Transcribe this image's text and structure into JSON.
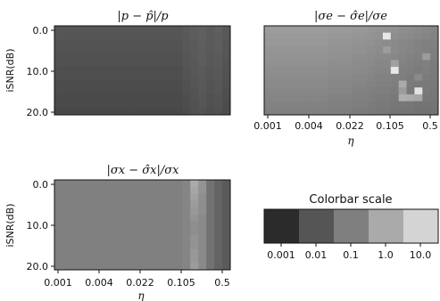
{
  "chart_data": [
    {
      "type": "heatmap",
      "title": "|p − p̂|/p",
      "ylabel": "iSNR(dB)",
      "xlabel": "",
      "y_ticks": [
        "0.0",
        "10.0",
        "20.0"
      ],
      "x_ticks": [],
      "grid": false,
      "rows": 13,
      "cols": 22,
      "cell_levels": [
        [
          -2.1,
          -2.1,
          -2.1,
          -2.1,
          -2.1,
          -2.1,
          -2.1,
          -2.1,
          -2.1,
          -2.1,
          -2.1,
          -2.1,
          -2.1,
          -2.1,
          -2.1,
          -2.1,
          -2.0,
          -1.95,
          -1.9,
          -2.0,
          -1.9,
          -2.05
        ],
        [
          -2.1,
          -2.1,
          -2.1,
          -2.1,
          -2.1,
          -2.1,
          -2.1,
          -2.1,
          -2.1,
          -2.1,
          -2.1,
          -2.1,
          -2.1,
          -2.1,
          -2.1,
          -2.1,
          -2.05,
          -1.95,
          -1.9,
          -2.0,
          -1.95,
          -2.05
        ],
        [
          -2.15,
          -2.15,
          -2.15,
          -2.15,
          -2.15,
          -2.15,
          -2.15,
          -2.15,
          -2.15,
          -2.15,
          -2.15,
          -2.15,
          -2.15,
          -2.15,
          -2.15,
          -2.15,
          -2.05,
          -2.0,
          -1.9,
          -2.0,
          -1.95,
          -2.1
        ],
        [
          -2.15,
          -2.15,
          -2.15,
          -2.15,
          -2.15,
          -2.15,
          -2.15,
          -2.15,
          -2.15,
          -2.15,
          -2.15,
          -2.15,
          -2.15,
          -2.15,
          -2.15,
          -2.15,
          -2.05,
          -2.0,
          -1.95,
          -2.0,
          -1.95,
          -2.1
        ],
        [
          -2.2,
          -2.2,
          -2.2,
          -2.2,
          -2.2,
          -2.2,
          -2.2,
          -2.2,
          -2.2,
          -2.2,
          -2.2,
          -2.2,
          -2.2,
          -2.2,
          -2.2,
          -2.2,
          -2.1,
          -2.0,
          -1.95,
          -2.05,
          -2.0,
          -2.1
        ],
        [
          -2.2,
          -2.2,
          -2.2,
          -2.2,
          -2.2,
          -2.2,
          -2.2,
          -2.2,
          -2.2,
          -2.2,
          -2.2,
          -2.2,
          -2.2,
          -2.2,
          -2.2,
          -2.2,
          -2.1,
          -2.05,
          -1.95,
          -2.05,
          -2.0,
          -2.15
        ],
        [
          -2.25,
          -2.25,
          -2.25,
          -2.25,
          -2.25,
          -2.25,
          -2.25,
          -2.25,
          -2.25,
          -2.25,
          -2.25,
          -2.25,
          -2.25,
          -2.25,
          -2.25,
          -2.25,
          -2.15,
          -2.05,
          -2.0,
          -2.1,
          -2.05,
          -2.15
        ],
        [
          -2.25,
          -2.25,
          -2.25,
          -2.25,
          -2.25,
          -2.25,
          -2.25,
          -2.25,
          -2.25,
          -2.25,
          -2.25,
          -2.25,
          -2.25,
          -2.25,
          -2.25,
          -2.25,
          -2.15,
          -2.1,
          -2.0,
          -2.1,
          -2.05,
          -2.2
        ],
        [
          -2.3,
          -2.3,
          -2.3,
          -2.3,
          -2.3,
          -2.3,
          -2.3,
          -2.3,
          -2.3,
          -2.3,
          -2.3,
          -2.3,
          -2.3,
          -2.3,
          -2.3,
          -2.3,
          -2.2,
          -2.1,
          -2.05,
          -2.15,
          -2.1,
          -2.2
        ],
        [
          -2.3,
          -2.3,
          -2.3,
          -2.3,
          -2.3,
          -2.3,
          -2.3,
          -2.3,
          -2.3,
          -2.3,
          -2.3,
          -2.3,
          -2.3,
          -2.3,
          -2.3,
          -2.3,
          -2.2,
          -2.15,
          -2.05,
          -2.15,
          -2.1,
          -2.25
        ],
        [
          -2.35,
          -2.35,
          -2.35,
          -2.35,
          -2.35,
          -2.35,
          -2.35,
          -2.35,
          -2.35,
          -2.35,
          -2.35,
          -2.35,
          -2.35,
          -2.35,
          -2.35,
          -2.35,
          -2.25,
          -2.15,
          -2.1,
          -2.2,
          -2.15,
          -2.25
        ],
        [
          -2.35,
          -2.35,
          -2.35,
          -2.35,
          -2.35,
          -2.35,
          -2.35,
          -2.35,
          -2.35,
          -2.35,
          -2.35,
          -2.35,
          -2.35,
          -2.35,
          -2.35,
          -2.35,
          -2.25,
          -2.2,
          -2.1,
          -2.2,
          -2.15,
          -2.3
        ],
        [
          -2.4,
          -2.4,
          -2.4,
          -2.4,
          -2.4,
          -2.4,
          -2.4,
          -2.4,
          -2.4,
          -2.4,
          -2.4,
          -2.4,
          -2.4,
          -2.4,
          -2.4,
          -2.4,
          -2.3,
          -2.2,
          -2.15,
          -2.25,
          -2.2,
          -2.3
        ]
      ]
    },
    {
      "type": "heatmap",
      "title": "|σe − σ̂e|/σe",
      "ylabel": "",
      "xlabel": "η",
      "y_ticks": [],
      "x_ticks": [
        "0.001",
        "0.004",
        "0.022",
        "0.105",
        "0.5"
      ],
      "grid": false,
      "rows": 13,
      "cols": 22,
      "cell_levels": [
        [
          -0.6,
          -0.6,
          -0.6,
          -0.6,
          -0.6,
          -0.6,
          -0.6,
          -0.6,
          -0.65,
          -0.65,
          -0.65,
          -0.7,
          -0.7,
          -0.75,
          -0.8,
          -0.8,
          -0.85,
          -0.9,
          -0.95,
          -1.0,
          -1.05,
          -1.1
        ],
        [
          -0.65,
          -0.65,
          -0.65,
          -0.65,
          -0.65,
          -0.65,
          -0.65,
          -0.65,
          -0.7,
          -0.7,
          -0.7,
          -0.75,
          -0.75,
          -0.8,
          -0.85,
          2.2,
          -0.9,
          -0.95,
          -1.0,
          -1.05,
          -1.1,
          -1.15
        ],
        [
          -0.7,
          -0.7,
          -0.7,
          -0.7,
          -0.7,
          -0.7,
          -0.7,
          -0.7,
          -0.75,
          -0.75,
          -0.75,
          -0.8,
          -0.8,
          -0.85,
          -0.9,
          -0.95,
          -1.0,
          -1.05,
          -1.1,
          -1.15,
          -1.2,
          -1.2
        ],
        [
          -0.75,
          -0.75,
          -0.75,
          -0.75,
          -0.75,
          -0.75,
          -0.75,
          -0.75,
          -0.8,
          -0.8,
          -0.8,
          -0.85,
          -0.85,
          -0.9,
          -0.95,
          -0.6,
          -1.0,
          -1.05,
          -1.1,
          -1.15,
          -1.2,
          -1.25
        ],
        [
          -0.8,
          -0.8,
          -0.8,
          -0.8,
          -0.8,
          -0.8,
          -0.8,
          -0.8,
          -0.85,
          -0.85,
          -0.85,
          -0.9,
          -0.9,
          -0.95,
          -1.0,
          -1.0,
          -1.05,
          -1.1,
          -1.15,
          -1.2,
          -0.6,
          -1.25
        ],
        [
          -0.85,
          -0.85,
          -0.85,
          -0.85,
          -0.85,
          -0.85,
          -0.85,
          -0.85,
          -0.9,
          -0.9,
          -0.9,
          -0.95,
          -0.95,
          -1.0,
          -1.05,
          -1.05,
          -0.5,
          -1.15,
          -1.2,
          -1.25,
          -1.2,
          -1.3
        ],
        [
          -0.9,
          -0.9,
          -0.9,
          -0.9,
          -0.9,
          -0.9,
          -0.9,
          -0.9,
          -0.95,
          -0.95,
          -0.95,
          -1.0,
          -1.0,
          -1.05,
          -1.1,
          -1.1,
          1.3,
          -1.2,
          -1.25,
          -1.3,
          -1.25,
          -1.3
        ],
        [
          -0.95,
          -0.95,
          -0.95,
          -0.95,
          -0.95,
          -0.95,
          -0.95,
          -0.95,
          -1.0,
          -1.0,
          -1.0,
          -1.05,
          -1.05,
          -1.1,
          -1.15,
          -1.15,
          -1.2,
          -1.25,
          -1.3,
          -1.0,
          -1.3,
          -1.35
        ],
        [
          -1.0,
          -1.0,
          -1.0,
          -1.0,
          -1.0,
          -1.0,
          -1.0,
          -1.0,
          -1.05,
          -1.05,
          -1.05,
          -1.1,
          -1.1,
          -1.15,
          -1.2,
          -1.2,
          -1.25,
          -0.3,
          -1.3,
          -1.35,
          -1.35,
          -1.35
        ],
        [
          -1.05,
          -1.05,
          -1.05,
          -1.05,
          -1.05,
          -1.05,
          -1.05,
          -1.05,
          -1.1,
          -1.1,
          -1.1,
          -1.15,
          -1.15,
          -1.2,
          -1.25,
          -1.25,
          -1.3,
          -0.6,
          -1.35,
          0.9,
          -1.35,
          -1.4
        ],
        [
          -1.1,
          -1.1,
          -1.1,
          -1.1,
          -1.1,
          -1.1,
          -1.1,
          -1.1,
          -1.15,
          -1.15,
          -1.15,
          -1.2,
          -1.2,
          -1.25,
          -1.3,
          -1.3,
          -1.35,
          -0.2,
          -0.3,
          -0.4,
          -1.4,
          -1.4
        ],
        [
          -1.15,
          -1.15,
          -1.15,
          -1.15,
          -1.15,
          -1.15,
          -1.15,
          -1.15,
          -1.2,
          -1.2,
          -1.2,
          -1.25,
          -1.25,
          -1.3,
          -1.35,
          -1.35,
          -1.4,
          -1.4,
          -1.4,
          -1.45,
          -1.45,
          -1.45
        ],
        [
          -1.2,
          -1.2,
          -1.2,
          -1.2,
          -1.2,
          -1.2,
          -1.2,
          -1.2,
          -1.25,
          -1.25,
          -1.25,
          -1.3,
          -1.3,
          -1.35,
          -1.4,
          -1.4,
          -1.45,
          -1.45,
          -1.45,
          -1.5,
          -1.5,
          -1.5
        ]
      ]
    },
    {
      "type": "heatmap",
      "title": "|σx − σ̂x|/σx",
      "ylabel": "iSNR(dB)",
      "xlabel": "η",
      "y_ticks": [
        "0.0",
        "10.0",
        "20.0"
      ],
      "x_ticks": [
        "0.001",
        "0.004",
        "0.022",
        "0.105",
        "0.5"
      ],
      "grid": false,
      "rows": 13,
      "cols": 22,
      "cell_levels": [
        [
          -1.2,
          -1.2,
          -1.2,
          -1.2,
          -1.2,
          -1.2,
          -1.2,
          -1.2,
          -1.2,
          -1.2,
          -1.2,
          -1.2,
          -1.2,
          -1.2,
          -1.2,
          -1.2,
          -1.1,
          -0.3,
          -0.8,
          -1.5,
          -1.8,
          -2.0
        ],
        [
          -1.2,
          -1.2,
          -1.2,
          -1.2,
          -1.2,
          -1.2,
          -1.2,
          -1.2,
          -1.2,
          -1.2,
          -1.2,
          -1.2,
          -1.2,
          -1.2,
          -1.2,
          -1.2,
          -1.1,
          -0.4,
          -0.8,
          -1.5,
          -1.8,
          -2.0
        ],
        [
          -1.2,
          -1.2,
          -1.2,
          -1.2,
          -1.2,
          -1.2,
          -1.2,
          -1.2,
          -1.2,
          -1.2,
          -1.2,
          -1.2,
          -1.2,
          -1.2,
          -1.2,
          -1.2,
          -1.1,
          -0.5,
          -0.9,
          -1.5,
          -1.8,
          -2.0
        ],
        [
          -1.2,
          -1.2,
          -1.2,
          -1.2,
          -1.2,
          -1.2,
          -1.2,
          -1.2,
          -1.2,
          -1.2,
          -1.2,
          -1.2,
          -1.2,
          -1.2,
          -1.2,
          -1.2,
          -1.1,
          -0.6,
          -0.9,
          -1.5,
          -1.8,
          -2.0
        ],
        [
          -1.2,
          -1.2,
          -1.2,
          -1.2,
          -1.2,
          -1.2,
          -1.2,
          -1.2,
          -1.2,
          -1.2,
          -1.2,
          -1.2,
          -1.2,
          -1.2,
          -1.2,
          -1.2,
          -1.1,
          -0.7,
          -0.9,
          -1.5,
          -1.8,
          -2.0
        ],
        [
          -1.2,
          -1.2,
          -1.2,
          -1.2,
          -1.2,
          -1.2,
          -1.2,
          -1.2,
          -1.2,
          -1.2,
          -1.2,
          -1.2,
          -1.2,
          -1.2,
          -1.2,
          -1.2,
          -1.1,
          -0.8,
          -1.0,
          -1.5,
          -1.8,
          -2.0
        ],
        [
          -1.2,
          -1.2,
          -1.2,
          -1.2,
          -1.2,
          -1.2,
          -1.2,
          -1.2,
          -1.2,
          -1.2,
          -1.2,
          -1.2,
          -1.2,
          -1.2,
          -1.2,
          -1.2,
          -1.1,
          -0.9,
          -1.0,
          -1.5,
          -1.8,
          -2.0
        ],
        [
          -1.2,
          -1.2,
          -1.2,
          -1.2,
          -1.2,
          -1.2,
          -1.2,
          -1.2,
          -1.2,
          -1.2,
          -1.2,
          -1.2,
          -1.2,
          -1.2,
          -1.2,
          -1.2,
          -1.1,
          -0.9,
          -1.0,
          -1.5,
          -1.8,
          -2.0
        ],
        [
          -1.2,
          -1.2,
          -1.2,
          -1.2,
          -1.2,
          -1.2,
          -1.2,
          -1.2,
          -1.2,
          -1.2,
          -1.2,
          -1.2,
          -1.2,
          -1.2,
          -1.2,
          -1.2,
          -1.1,
          -0.8,
          -1.0,
          -1.5,
          -1.8,
          -2.0
        ],
        [
          -1.2,
          -1.2,
          -1.2,
          -1.2,
          -1.2,
          -1.2,
          -1.2,
          -1.2,
          -1.2,
          -1.2,
          -1.2,
          -1.2,
          -1.2,
          -1.2,
          -1.2,
          -1.2,
          -1.1,
          -0.8,
          -1.0,
          -1.5,
          -1.8,
          -2.0
        ],
        [
          -1.2,
          -1.2,
          -1.2,
          -1.2,
          -1.2,
          -1.2,
          -1.2,
          -1.2,
          -1.2,
          -1.2,
          -1.2,
          -1.2,
          -1.2,
          -1.2,
          -1.2,
          -1.2,
          -1.1,
          -0.7,
          -1.0,
          -1.5,
          -1.8,
          -2.0
        ],
        [
          -1.2,
          -1.2,
          -1.2,
          -1.2,
          -1.2,
          -1.2,
          -1.2,
          -1.2,
          -1.2,
          -1.2,
          -1.2,
          -1.2,
          -1.2,
          -1.2,
          -1.2,
          -1.2,
          -1.1,
          -0.7,
          -1.0,
          -1.5,
          -1.8,
          -2.0
        ],
        [
          -1.2,
          -1.2,
          -1.2,
          -1.2,
          -1.2,
          -1.2,
          -1.2,
          -1.2,
          -1.2,
          -1.2,
          -1.2,
          -1.2,
          -1.2,
          -1.2,
          -1.2,
          -1.2,
          -1.1,
          -0.6,
          -1.0,
          -1.5,
          -1.8,
          -2.0
        ]
      ]
    }
  ],
  "colorbar": {
    "title": "Colorbar scale",
    "labels": [
      "0.001",
      "0.01",
      "0.1",
      "1.0",
      "10.0"
    ],
    "colors": [
      "#2b2b2b",
      "#555555",
      "#7f7f7f",
      "#aaaaaa",
      "#d4d4d4"
    ]
  },
  "colormap": {
    "log10_min": -3,
    "log10_max": 1,
    "dark": 43,
    "light": 232
  }
}
